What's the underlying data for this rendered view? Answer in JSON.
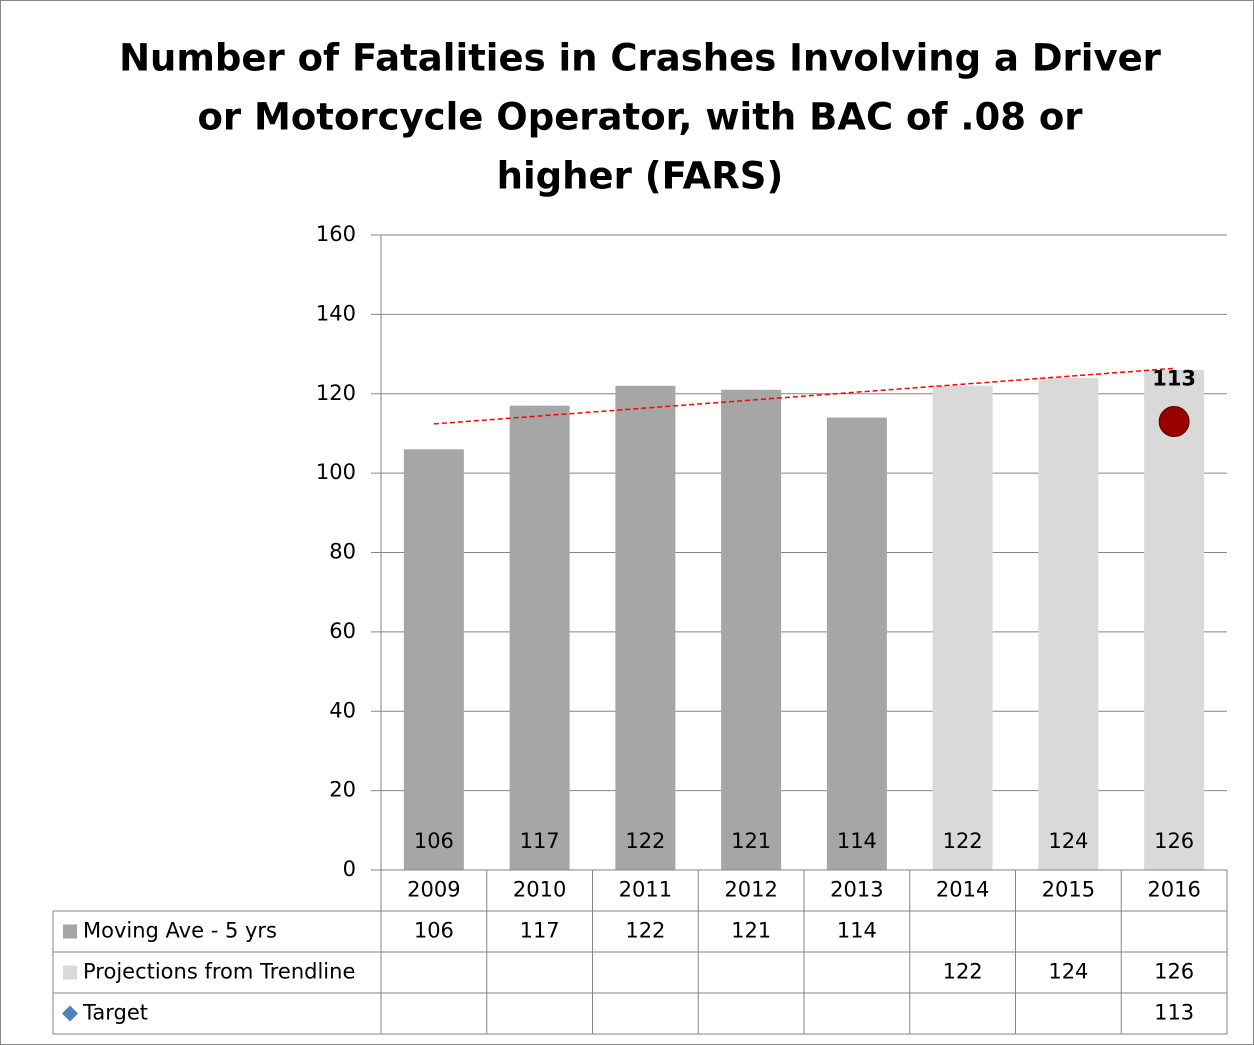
{
  "chart_data": {
    "type": "bar",
    "title": [
      "Number of Fatalities in Crashes Involving a Driver",
      "or Motorcycle Operator, with BAC of .08 or",
      "higher (FARS)"
    ],
    "categories": [
      "2009",
      "2010",
      "2011",
      "2012",
      "2013",
      "2014",
      "2015",
      "2016"
    ],
    "series": [
      {
        "name": "Moving Ave - 5 yrs",
        "color": "#a6a6a6",
        "values": [
          106,
          117,
          122,
          121,
          114,
          null,
          null,
          null
        ]
      },
      {
        "name": "Projections from Trendline",
        "color": "#d9d9d9",
        "values": [
          null,
          null,
          null,
          null,
          null,
          122,
          124,
          126
        ]
      },
      {
        "name": "Target",
        "color": "#4f81bd",
        "marker_color": "#990000",
        "values": [
          null,
          null,
          null,
          null,
          null,
          null,
          null,
          113
        ]
      }
    ],
    "trendline": {
      "color": "#ff0000",
      "values": [
        112.4,
        114.4,
        116.4,
        118.4,
        120.4,
        122.4,
        124.4,
        126.4
      ]
    },
    "ylim": [
      0,
      160
    ],
    "yticks": [
      0,
      20,
      40,
      60,
      80,
      100,
      120,
      140,
      160
    ],
    "grid": true
  }
}
